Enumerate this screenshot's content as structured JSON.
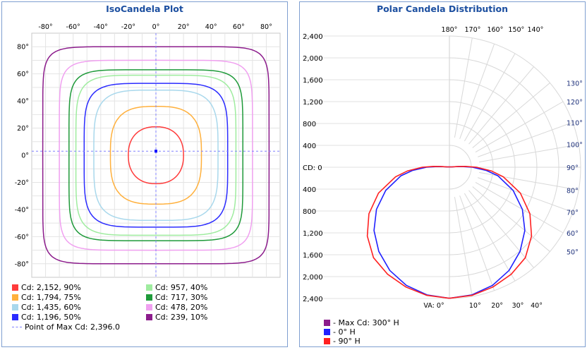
{
  "chart_data": [
    {
      "type": "contour",
      "title": "IsoCandela Plot",
      "x_ticks": [
        "-80°",
        "-60°",
        "-40°",
        "-20°",
        "0°",
        "20°",
        "40°",
        "60°",
        "80°"
      ],
      "y_ticks": [
        "80°",
        "60°",
        "40°",
        "20°",
        "0°",
        "-20°",
        "-40°",
        "-60°",
        "-80°"
      ],
      "xlim": [
        -90,
        90
      ],
      "ylim": [
        -90,
        90
      ],
      "grid": true,
      "contours": [
        {
          "label": "Cd: 2,152, 90%",
          "color": "#ff3b3b",
          "pct": 90,
          "rx": 20,
          "ry": 21,
          "p": 2.3
        },
        {
          "label": "Cd: 1,794, 75%",
          "color": "#ffb03c",
          "pct": 75,
          "rx": 33,
          "ry": 36,
          "p": 3.0
        },
        {
          "label": "Cd: 1,435, 60%",
          "color": "#a9d8ec",
          "pct": 60,
          "rx": 45,
          "ry": 48,
          "p": 4.0
        },
        {
          "label": "Cd: 1,196, 50%",
          "color": "#2b2bff",
          "pct": 50,
          "rx": 52,
          "ry": 53,
          "p": 4.8
        },
        {
          "label": "Cd: 957, 40%",
          "color": "#9fec9f",
          "pct": 40,
          "rx": 58,
          "ry": 59,
          "p": 5.5
        },
        {
          "label": "Cd: 717, 30%",
          "color": "#1f9a3a",
          "pct": 30,
          "rx": 63,
          "ry": 63,
          "p": 6.5
        },
        {
          "label": "Cd: 478, 20%",
          "color": "#f0a0f0",
          "pct": 20,
          "rx": 70,
          "ry": 70,
          "p": 7.5
        },
        {
          "label": "Cd: 239, 10%",
          "color": "#8c1c8c",
          "pct": 10,
          "rx": 82,
          "ry": 80,
          "p": 9.0
        }
      ],
      "max_point": {
        "label": "Point of Max Cd: 2,396.0",
        "x": 0,
        "y": 3,
        "color": "#8080ff"
      }
    },
    {
      "type": "polar",
      "title": "Polar Candela Distribution",
      "r_max": 2400,
      "left_labels_top": [
        "2,400",
        "2,000",
        "1,600",
        "1,200",
        "800",
        "400"
      ],
      "left_label_center": "CD: 0",
      "left_labels_bottom": [
        "400",
        "800",
        "1,200",
        "1,600",
        "2,000",
        "2,400"
      ],
      "right_angle_labels": [
        "130°",
        "120°",
        "110°",
        "100°",
        "90°",
        "80°",
        "70°",
        "60°",
        "50°"
      ],
      "top_angle_labels": [
        "180°",
        "170°",
        "160°",
        "150°",
        "140°"
      ],
      "bottom_angle_labels": [
        "VA: 0°",
        "10°",
        "20°",
        "30°",
        "40°"
      ],
      "series": [
        {
          "name": "- Max Cd: 300° H",
          "color": "#8c1c8c",
          "points": [],
          "legend_only": true
        },
        {
          "name": "- 0° H",
          "color": "#2020ff",
          "points": [
            [
              0,
              2396
            ],
            [
              10,
              2370
            ],
            [
              20,
              2300
            ],
            [
              30,
              2180
            ],
            [
              40,
              2010
            ],
            [
              50,
              1800
            ],
            [
              60,
              1540
            ],
            [
              70,
              1240
            ],
            [
              80,
              900
            ],
            [
              85,
              680
            ],
            [
              90,
              420
            ],
            [
              93,
              230
            ],
            [
              95,
              120
            ],
            [
              97,
              40
            ]
          ]
        },
        {
          "name": "- 90° H",
          "color": "#ff2020",
          "points": [
            [
              0,
              2396
            ],
            [
              10,
              2380
            ],
            [
              20,
              2330
            ],
            [
              30,
              2260
            ],
            [
              40,
              2160
            ],
            [
              50,
              1960
            ],
            [
              60,
              1700
            ],
            [
              70,
              1380
            ],
            [
              80,
              1000
            ],
            [
              85,
              770
            ],
            [
              90,
              500
            ],
            [
              93,
              300
            ],
            [
              95,
              160
            ],
            [
              97,
              50
            ]
          ]
        }
      ]
    }
  ]
}
